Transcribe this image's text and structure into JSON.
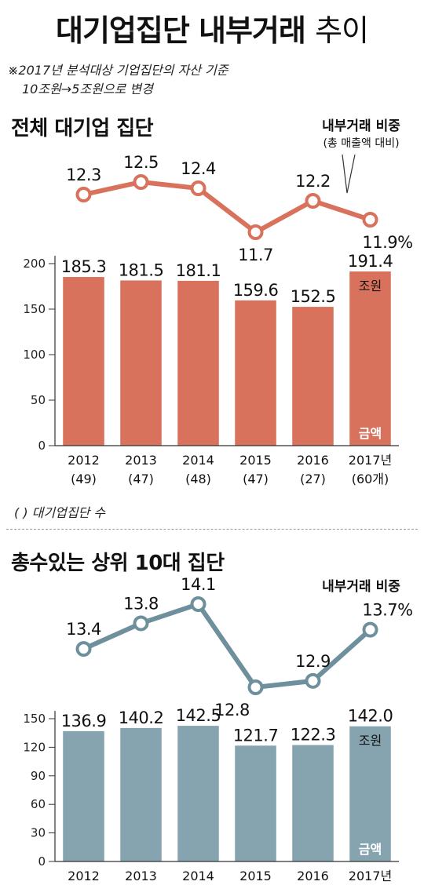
{
  "title": {
    "bold": "대기업집단 내부거래",
    "light": "추이"
  },
  "notes": {
    "line1": "※2017년 분석대상 기업집단의 자산 기준",
    "line2": "10조원→5조원으로 변경",
    "paren_note": "( ) 대기업집단 수"
  },
  "chart_data": [
    {
      "type": "bar",
      "title": "전체 대기업 집단",
      "categories": [
        "2012",
        "2013",
        "2014",
        "2015",
        "2016",
        "2017년"
      ],
      "sublabels": [
        "(49)",
        "(47)",
        "(48)",
        "(47)",
        "(27)",
        "(60개)"
      ],
      "values": [
        185.3,
        181.5,
        181.1,
        159.6,
        152.5,
        191.4
      ],
      "value_labels": [
        "185.3",
        "181.5",
        "181.1",
        "159.6",
        "152.5",
        "191.4"
      ],
      "unit_label": "조원",
      "series_label": "금액",
      "ylim": [
        0,
        200
      ],
      "yticks": [
        0,
        50,
        100,
        150,
        200
      ],
      "ytick_labels": [
        "0",
        "50",
        "100",
        "150",
        "200"
      ],
      "bar_color": "#d9725c",
      "line": {
        "legend": "내부거래 비중",
        "legend_sub": "(총 매출액 대비)",
        "values": [
          12.3,
          12.5,
          12.4,
          11.7,
          12.2,
          11.9
        ],
        "value_labels": [
          "12.3",
          "12.5",
          "12.4",
          "11.7",
          "12.2",
          "11.9%"
        ],
        "color": "#d9725c"
      }
    },
    {
      "type": "bar",
      "title": "총수있는 상위 10대 집단",
      "categories": [
        "2012",
        "2013",
        "2014",
        "2015",
        "2016",
        "2017년"
      ],
      "values": [
        136.9,
        140.2,
        142.5,
        121.7,
        122.3,
        142.0
      ],
      "value_labels": [
        "136.9",
        "140.2",
        "142.5",
        "121.7",
        "122.3",
        "142.0"
      ],
      "unit_label": "조원",
      "series_label": "금액",
      "ylim": [
        0,
        150
      ],
      "yticks": [
        0,
        30,
        60,
        90,
        120,
        150
      ],
      "ytick_labels": [
        "0",
        "30",
        "60",
        "90",
        "120",
        "150"
      ],
      "bar_color": "#86a4b0",
      "line": {
        "legend": "내부거래 비중",
        "values": [
          13.4,
          13.8,
          14.1,
          12.8,
          12.9,
          13.7
        ],
        "value_labels": [
          "13.4",
          "13.8",
          "14.1",
          "12.8",
          "12.9",
          "13.7%"
        ],
        "color": "#6e909d"
      }
    }
  ]
}
